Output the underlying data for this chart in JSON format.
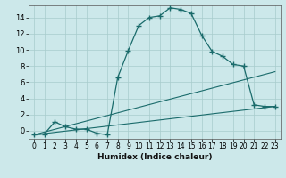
{
  "bg_color": "#cce8ea",
  "grid_color": "#a8cccc",
  "line_color": "#1a6b6b",
  "xlabel": "Humidex (Indice chaleur)",
  "xlim": [
    -0.5,
    23.5
  ],
  "ylim": [
    -1.0,
    15.5
  ],
  "xticks": [
    0,
    1,
    2,
    3,
    4,
    5,
    6,
    7,
    8,
    9,
    10,
    11,
    12,
    13,
    14,
    15,
    16,
    17,
    18,
    19,
    20,
    21,
    22,
    23
  ],
  "yticks": [
    0,
    2,
    4,
    6,
    8,
    10,
    12,
    14
  ],
  "curve1_x": [
    0,
    1,
    2,
    3,
    4,
    5,
    6,
    7,
    8,
    9,
    10,
    11,
    12,
    13,
    14,
    15,
    16,
    17,
    18,
    19,
    20,
    21,
    22,
    23
  ],
  "curve1_y": [
    -0.5,
    -0.4,
    1.1,
    0.5,
    0.2,
    0.2,
    -0.3,
    -0.5,
    6.6,
    9.9,
    13.0,
    14.0,
    14.2,
    15.2,
    15.0,
    14.5,
    11.8,
    9.8,
    9.2,
    8.2,
    8.0,
    3.2,
    3.0,
    3.0
  ],
  "line2_x": [
    0,
    23
  ],
  "line2_y": [
    -0.5,
    7.3
  ],
  "line3_x": [
    0,
    23
  ],
  "line3_y": [
    -0.5,
    3.0
  ]
}
